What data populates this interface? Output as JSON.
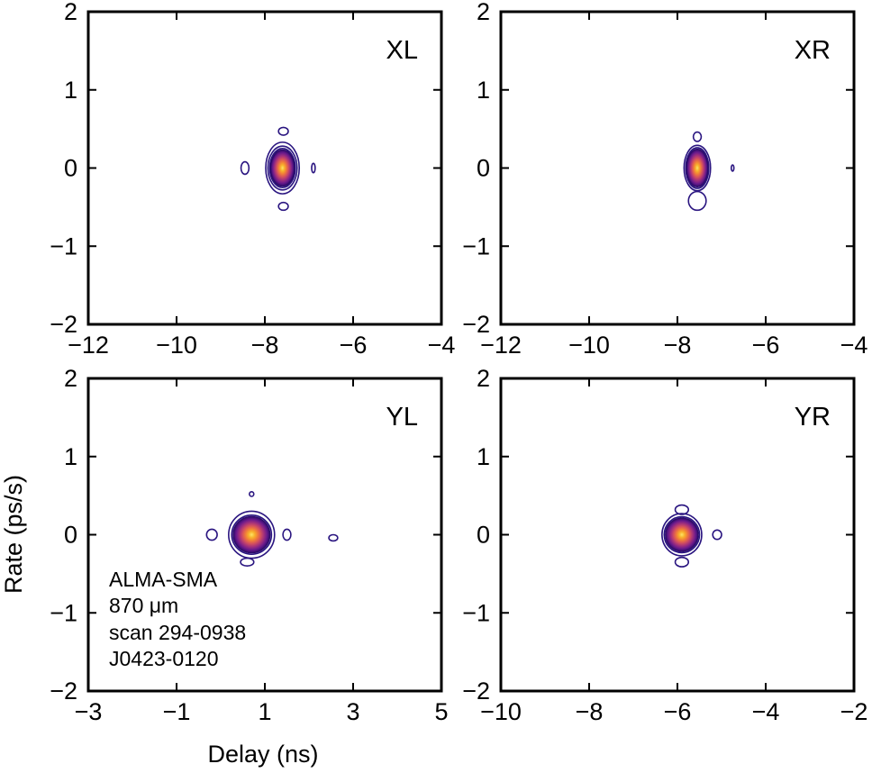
{
  "chart_data": {
    "type": "contour",
    "ylabel": "Rate (ps/s)",
    "xlabel": "Delay (ns)",
    "annotation": [
      "ALMA-SMA",
      "870 μm",
      "scan 294-0938",
      "J0423-0120"
    ],
    "colormap": [
      "#2b0b6a",
      "#6a1a8c",
      "#a3307c",
      "#d4505e",
      "#f07c3a",
      "#f8b22b",
      "#fce36a"
    ],
    "outer_contour_color": "#2a1580",
    "panels": [
      {
        "label": "XL",
        "xlim": [
          -12,
          -4
        ],
        "ylim": [
          -2,
          2
        ],
        "xticks": [
          -12,
          -10,
          -8,
          -6,
          -4
        ],
        "xtick_labels": [
          "−12",
          "−10",
          "−8",
          "−6",
          "−4"
        ],
        "yticks": [
          -2,
          -1,
          0,
          1,
          2
        ],
        "ytick_labels": [
          "−2",
          "−1",
          "0",
          "1",
          "2"
        ],
        "peak": {
          "delay": -7.6,
          "rate": 0.0
        },
        "contours": [
          {
            "cx": -7.6,
            "cy": 0.0,
            "rx": 0.38,
            "ry": 0.33
          },
          {
            "cx": -7.6,
            "cy": 0.0,
            "rx": 0.33,
            "ry": 0.28
          },
          {
            "cx": -7.6,
            "cy": 0.0,
            "rx": 0.29,
            "ry": 0.25
          }
        ],
        "islands": [
          {
            "cx": -7.58,
            "cy": 0.47,
            "rx": 0.11,
            "ry": 0.05
          },
          {
            "cx": -7.58,
            "cy": -0.49,
            "rx": 0.11,
            "ry": 0.05
          },
          {
            "cx": -8.45,
            "cy": 0.0,
            "rx": 0.09,
            "ry": 0.08
          },
          {
            "cx": -6.9,
            "cy": 0.0,
            "rx": 0.04,
            "ry": 0.06
          }
        ]
      },
      {
        "label": "XR",
        "xlim": [
          -12,
          -4
        ],
        "ylim": [
          -2,
          2
        ],
        "xticks": [
          -12,
          -10,
          -8,
          -6,
          -4
        ],
        "xtick_labels": [
          "−12",
          "−10",
          "−8",
          "−6",
          "−4"
        ],
        "yticks": [
          -2,
          -1,
          0,
          1,
          2
        ],
        "ytick_labels": [
          "−2",
          "−1",
          "0",
          "1",
          "2"
        ],
        "peak": {
          "delay": -7.55,
          "rate": 0.0
        },
        "contours": [
          {
            "cx": -7.55,
            "cy": 0.0,
            "rx": 0.3,
            "ry": 0.29
          },
          {
            "cx": -7.55,
            "cy": 0.0,
            "rx": 0.26,
            "ry": 0.26
          }
        ],
        "islands": [
          {
            "cx": -7.55,
            "cy": 0.4,
            "rx": 0.09,
            "ry": 0.06
          },
          {
            "cx": -7.55,
            "cy": -0.42,
            "rx": 0.2,
            "ry": 0.12
          },
          {
            "cx": -6.75,
            "cy": 0.0,
            "rx": 0.03,
            "ry": 0.04
          }
        ]
      },
      {
        "label": "YL",
        "xlim": [
          -3,
          5
        ],
        "ylim": [
          -2,
          2
        ],
        "xticks": [
          -3,
          -1,
          1,
          3,
          5
        ],
        "xtick_labels": [
          "−3",
          "−1",
          "1",
          "3",
          "5"
        ],
        "yticks": [
          -2,
          -1,
          0,
          1,
          2
        ],
        "ytick_labels": [
          "−2",
          "−1",
          "0",
          "1",
          "2"
        ],
        "peak": {
          "delay": 0.7,
          "rate": 0.0
        },
        "contours": [
          {
            "cx": 0.7,
            "cy": 0.0,
            "rx": 0.52,
            "ry": 0.3
          },
          {
            "cx": 0.7,
            "cy": 0.0,
            "rx": 0.45,
            "ry": 0.25
          }
        ],
        "islands": [
          {
            "cx": 0.7,
            "cy": 0.52,
            "rx": 0.05,
            "ry": 0.03
          },
          {
            "cx": 0.6,
            "cy": -0.35,
            "rx": 0.15,
            "ry": 0.05
          },
          {
            "cx": -0.2,
            "cy": 0.0,
            "rx": 0.12,
            "ry": 0.07
          },
          {
            "cx": 1.5,
            "cy": 0.0,
            "rx": 0.09,
            "ry": 0.07
          },
          {
            "cx": 2.55,
            "cy": -0.04,
            "rx": 0.1,
            "ry": 0.04
          }
        ]
      },
      {
        "label": "YR",
        "xlim": [
          -10,
          -2
        ],
        "ylim": [
          -2,
          2
        ],
        "xticks": [
          -10,
          -8,
          -6,
          -4,
          -2
        ],
        "xtick_labels": [
          "−10",
          "−8",
          "−6",
          "−4",
          "−2"
        ],
        "yticks": [
          -2,
          -1,
          0,
          1,
          2
        ],
        "ytick_labels": [
          "−2",
          "−1",
          "0",
          "1",
          "2"
        ],
        "peak": {
          "delay": -5.9,
          "rate": 0.0
        },
        "contours": [
          {
            "cx": -5.9,
            "cy": 0.0,
            "rx": 0.45,
            "ry": 0.27
          },
          {
            "cx": -5.9,
            "cy": 0.0,
            "rx": 0.4,
            "ry": 0.23
          }
        ],
        "islands": [
          {
            "cx": -5.9,
            "cy": 0.32,
            "rx": 0.15,
            "ry": 0.06
          },
          {
            "cx": -5.9,
            "cy": -0.35,
            "rx": 0.15,
            "ry": 0.06
          },
          {
            "cx": -5.1,
            "cy": 0.0,
            "rx": 0.1,
            "ry": 0.06
          }
        ]
      }
    ]
  }
}
